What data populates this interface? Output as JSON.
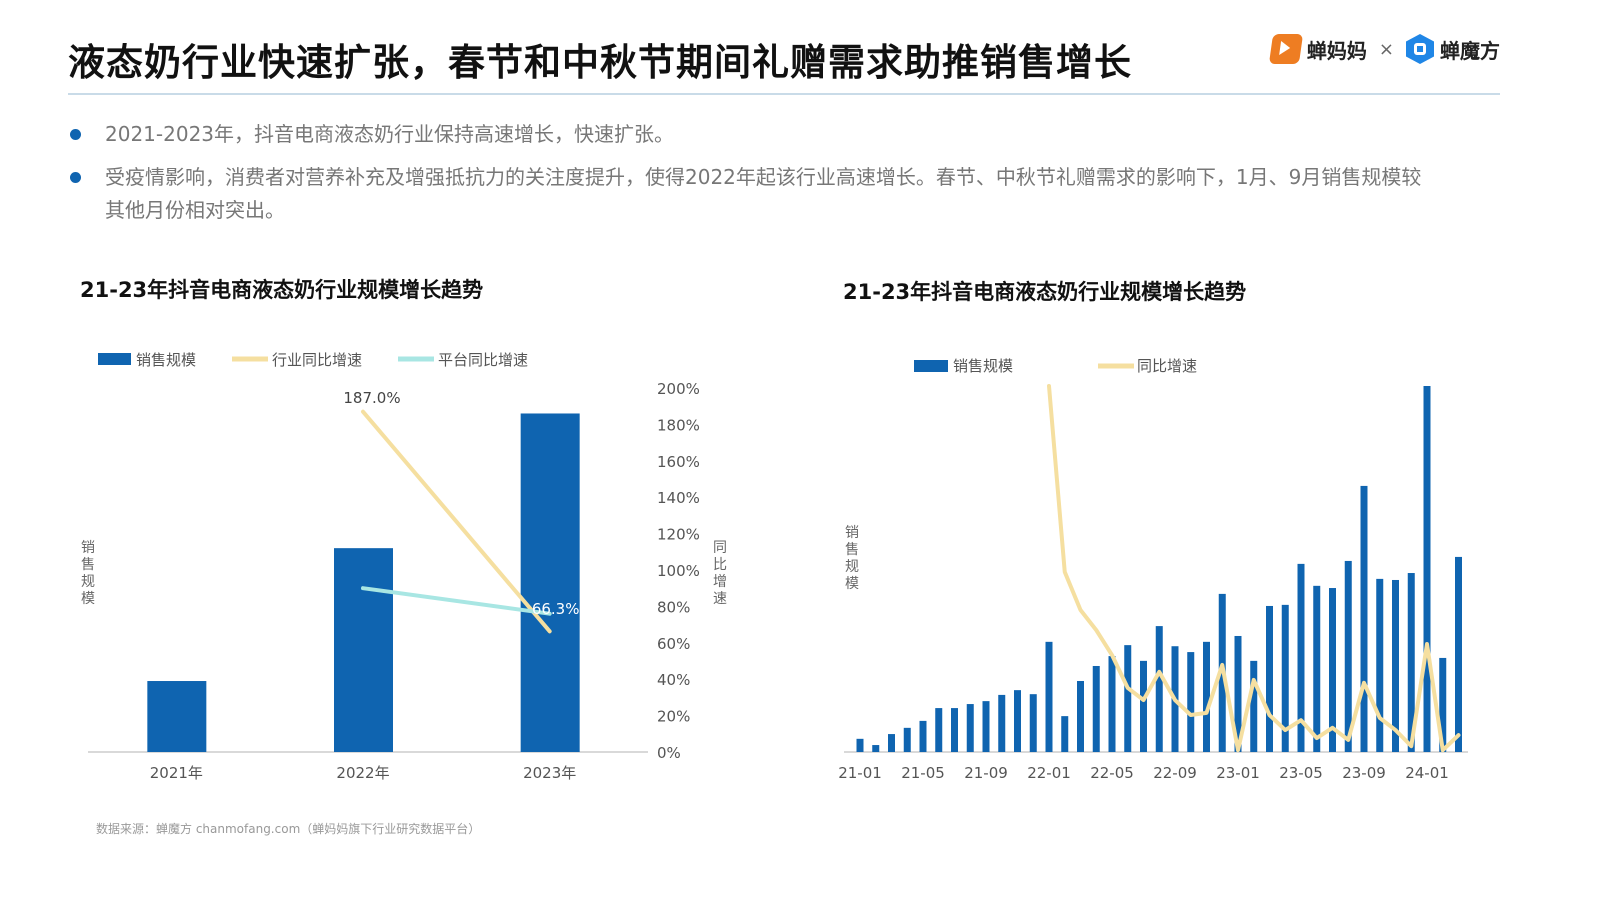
{
  "header": {
    "title": "液态奶行业快速扩张，春节和中秋节期间礼赠需求助推销售增长",
    "logo_left": "蝉妈妈",
    "logo_sep": "×",
    "logo_right": "蝉魔方"
  },
  "bullets": [
    "2021-2023年，抖音电商液态奶行业保持高速增长，快速扩张。",
    "受疫情影响，消费者对营养补充及增强抵抗力的关注度提升，使得2022年起该行业高速增长。春节、中秋节礼赠需求的影响下，1月、9月销售规模较其他月份相对突出。"
  ],
  "source": "数据来源：蝉魔方 chanmofang.com（蝉妈妈旗下行业研究数据平台）",
  "colors": {
    "bar": "#0f64b0",
    "industry_line": "#f5dfa0",
    "platform_line": "#a8e6e3",
    "axis": "#d9d9d9"
  },
  "chart_data": [
    {
      "type": "bar",
      "title": "21-23年抖音电商液态奶行业规模增长趋势",
      "categories": [
        "2021年",
        "2022年",
        "2023年"
      ],
      "ylabel": "销售规模",
      "y2label": "同比增速",
      "y2lim": [
        0,
        200
      ],
      "y2ticks": [
        "0%",
        "20%",
        "40%",
        "60%",
        "80%",
        "100%",
        "120%",
        "140%",
        "160%",
        "180%",
        "200%"
      ],
      "legend": [
        "销售规模",
        "行业同比增速",
        "平台同比增速"
      ],
      "legend_position": "top-left",
      "series": [
        {
          "name": "销售规模",
          "kind": "bar",
          "values": [
            19.5,
            56,
            93
          ],
          "unit": "relative (2023 ≈ 93 on a 0–100 scale)"
        },
        {
          "name": "行业同比增速",
          "kind": "line",
          "values": [
            null,
            187.0,
            66.3
          ],
          "labels": [
            null,
            "187.0%",
            "66.3%"
          ]
        },
        {
          "name": "平台同比增速",
          "kind": "line",
          "values": [
            null,
            90,
            76
          ]
        }
      ]
    },
    {
      "type": "bar",
      "title": "21-23年抖音电商液态奶行业规模增长趋势",
      "ylabel": "销售规模",
      "legend": [
        "销售规模",
        "同比增速"
      ],
      "legend_position": "top",
      "x": [
        "21-01",
        "21-02",
        "21-03",
        "21-04",
        "21-05",
        "21-06",
        "21-07",
        "21-08",
        "21-09",
        "21-10",
        "21-11",
        "21-12",
        "22-01",
        "22-02",
        "22-03",
        "22-04",
        "22-05",
        "22-06",
        "22-07",
        "22-08",
        "22-09",
        "22-10",
        "22-11",
        "22-12",
        "23-01",
        "23-02",
        "23-03",
        "23-04",
        "23-05",
        "23-06",
        "23-07",
        "23-08",
        "23-09",
        "23-10",
        "23-11",
        "23-12",
        "24-01",
        "24-02",
        "24-03"
      ],
      "xticks": [
        "21-01",
        "21-05",
        "21-09",
        "22-01",
        "22-05",
        "22-09",
        "23-01",
        "23-05",
        "23-09",
        "24-01"
      ],
      "series": [
        {
          "name": "销售规模",
          "kind": "bar",
          "unit": "relative (24-01 = 100)",
          "values": [
            3.6,
            1.9,
            4.9,
            6.6,
            8.5,
            12.0,
            12.0,
            13.1,
            13.9,
            15.6,
            16.9,
            15.8,
            30.1,
            9.8,
            19.4,
            23.5,
            26.2,
            29.2,
            24.9,
            34.4,
            28.9,
            27.3,
            30.1,
            43.2,
            31.7,
            24.9,
            39.9,
            40.2,
            51.4,
            45.4,
            44.8,
            52.2,
            72.7,
            47.3,
            47.0,
            48.9,
            100,
            25.7,
            53.3
          ]
        },
        {
          "name": "同比增速",
          "kind": "line",
          "unit": "relative (same scale, no axis shown)",
          "values": [
            null,
            null,
            null,
            null,
            null,
            null,
            null,
            null,
            null,
            null,
            null,
            null,
            100,
            49.2,
            38.8,
            33.3,
            26.5,
            17.5,
            14.2,
            21.9,
            14.2,
            10.1,
            10.7,
            23.8,
            0.5,
            19.7,
            10.1,
            6.0,
            8.7,
            3.8,
            6.6,
            3.3,
            18.9,
            9.3,
            6.0,
            1.6,
            29.5,
            0.5,
            4.6
          ]
        }
      ]
    }
  ]
}
